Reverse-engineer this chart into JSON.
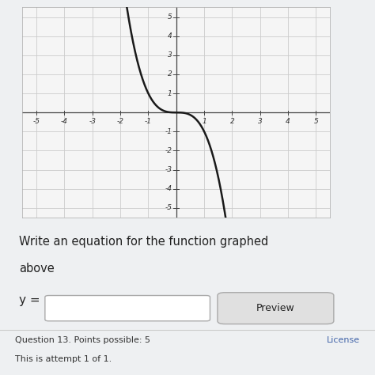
{
  "title": "",
  "xlim": [
    -5.5,
    5.5
  ],
  "ylim": [
    -5.5,
    5.5
  ],
  "xticks": [
    -5,
    -4,
    -3,
    -2,
    -1,
    1,
    2,
    3,
    4,
    5
  ],
  "yticks": [
    -5,
    -4,
    -3,
    -2,
    -1,
    1,
    2,
    3,
    4,
    5
  ],
  "xtick_labels": [
    "-5",
    "-4",
    "-3",
    "-2",
    "-1",
    "1",
    "2",
    "3",
    "4",
    "5"
  ],
  "ytick_labels": [
    "-5",
    "-4",
    "-3",
    "-2",
    "-1",
    "1",
    "2",
    "3",
    "4",
    "5"
  ],
  "curve_color": "#1a1a1a",
  "curve_linewidth": 1.8,
  "grid_color": "#cccccc",
  "axis_color": "#444444",
  "plot_bg_color": "#f5f5f5",
  "page_bg_color": "#eef0f2",
  "question_text_line1": "Write an equation for the function graphed",
  "question_text_line2": "above",
  "label_text": "y =",
  "button_text": "Preview",
  "footer_line1": "Question 13. Points possible: 5",
  "footer_line2": "This is attempt 1 of 1.",
  "license_text": "License"
}
